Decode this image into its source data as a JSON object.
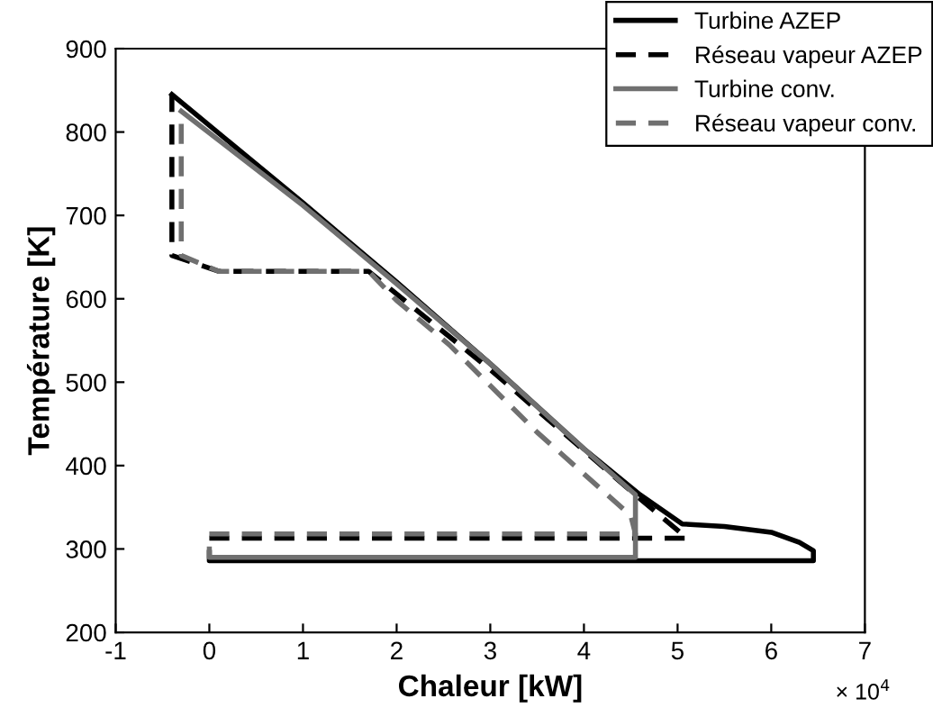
{
  "chart_data": {
    "type": "line",
    "xlabel": "Chaleur [kW]",
    "ylabel": "Température [K]",
    "xlim": [
      -1,
      7
    ],
    "xticks": [
      -1,
      0,
      1,
      2,
      3,
      4,
      5,
      6,
      7
    ],
    "ylim": [
      200,
      900
    ],
    "yticks": [
      200,
      300,
      400,
      500,
      600,
      700,
      800,
      900
    ],
    "grid": false,
    "legend": "top right",
    "annotations": [
      "× 10$^{4}$"
    ],
    "series": [
      {
        "name": "Turbine AZEP",
        "color": "#000000",
        "line_style": "solid",
        "x": [
          -0.4,
          1.0,
          2.0,
          3.0,
          4.0,
          4.6,
          5.05,
          5.5,
          6.0,
          6.3,
          6.45,
          6.45,
          0.0,
          0.0
        ],
        "values": [
          845,
          715,
          620,
          522,
          420,
          365,
          330,
          327,
          320,
          308,
          298,
          286,
          286,
          296
        ]
      },
      {
        "name": "Réseau vapeur AZEP",
        "color": "#000000",
        "line_style": "dashed",
        "x": [
          0.0,
          5.1,
          4.6,
          3.0,
          1.7,
          0.1,
          -0.4,
          -0.4
        ],
        "values": [
          313,
          313,
          360,
          515,
          633,
          633,
          652,
          845
        ]
      },
      {
        "name": "Turbine conv.",
        "color": "#707070",
        "line_style": "solid",
        "x": [
          -0.3,
          1.0,
          2.0,
          3.0,
          4.0,
          4.55,
          4.55,
          0.0,
          0.0
        ],
        "values": [
          825,
          712,
          618,
          522,
          420,
          365,
          290,
          290,
          300
        ]
      },
      {
        "name": "Réseau vapeur conv.",
        "color": "#707070",
        "line_style": "dashed",
        "x": [
          0.0,
          4.55,
          4.5,
          3.5,
          2.56,
          2.0,
          1.7,
          0.1,
          -0.3,
          -0.3
        ],
        "values": [
          318,
          318,
          340,
          440,
          545,
          598,
          633,
          633,
          652,
          825
        ]
      }
    ]
  }
}
